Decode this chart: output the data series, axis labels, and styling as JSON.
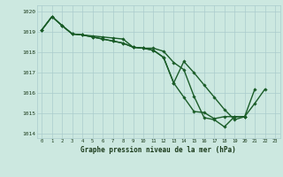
{
  "title": "Graphe pression niveau de la mer (hPa)",
  "xlabel_hours": [
    0,
    1,
    2,
    3,
    4,
    5,
    6,
    7,
    8,
    9,
    10,
    11,
    12,
    13,
    14,
    15,
    16,
    17,
    18,
    19,
    20,
    21,
    22,
    23
  ],
  "series1": [
    1019.1,
    1019.75,
    1019.3,
    1018.9,
    1018.85,
    1018.8,
    1018.75,
    1018.7,
    1018.65,
    1018.25,
    1018.2,
    1018.2,
    1018.05,
    1017.5,
    1017.15,
    1015.85,
    1014.8,
    1014.7,
    1014.35,
    1014.85,
    1014.85,
    1015.5,
    1016.2,
    null
  ],
  "series2": [
    1019.1,
    1019.75,
    1019.3,
    1018.9,
    1018.85,
    1018.75,
    1018.65,
    1018.55,
    1018.45,
    1018.25,
    1018.2,
    1018.1,
    1017.75,
    1016.5,
    1015.8,
    1015.1,
    1015.05,
    1014.75,
    1014.85,
    1014.85,
    1014.85,
    null,
    null,
    null
  ],
  "series3": [
    1019.1,
    1019.75,
    1019.3,
    1018.9,
    1018.85,
    1018.75,
    1018.65,
    1018.55,
    1018.45,
    1018.25,
    1018.2,
    1018.1,
    1017.75,
    1016.5,
    1017.55,
    1017.0,
    1016.4,
    1015.8,
    1015.2,
    1014.7,
    1014.85,
    1016.2,
    null,
    null
  ],
  "ylim": [
    1013.8,
    1020.3
  ],
  "yticks": [
    1014,
    1015,
    1016,
    1017,
    1018,
    1019,
    1020
  ],
  "bg_color": "#cce8e0",
  "grid_color": "#aacccc",
  "line_color": "#1a5c28",
  "marker_color": "#1a5c28",
  "line_width": 1.0,
  "fig_width": 3.2,
  "fig_height": 2.0,
  "dpi": 100
}
